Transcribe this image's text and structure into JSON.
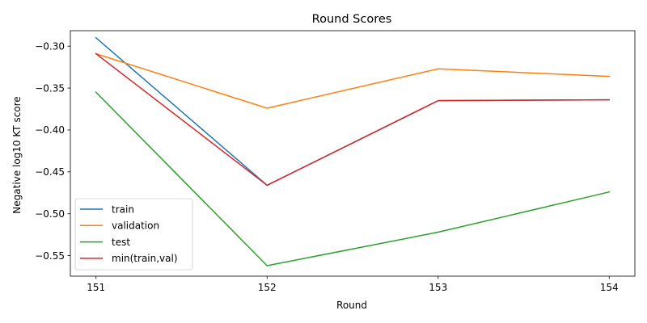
{
  "chart_data": {
    "type": "line",
    "title": "Round Scores",
    "xlabel": "Round",
    "ylabel": "Negative log10 KT score",
    "x": [
      151,
      152,
      153,
      154
    ],
    "xticks": [
      "151",
      "152",
      "153",
      "154"
    ],
    "yticks": [
      -0.3,
      -0.35,
      -0.4,
      -0.45,
      -0.5,
      -0.55
    ],
    "ytick_labels": [
      "−0.30",
      "−0.35",
      "−0.40",
      "−0.45",
      "−0.50",
      "−0.55"
    ],
    "xlim": [
      150.85,
      154.15
    ],
    "ylim": [
      -0.5745,
      -0.2815
    ],
    "grid": false,
    "legend_position": "lower-left",
    "series": [
      {
        "name": "train",
        "color": "#1f77b4",
        "values": [
          -0.29,
          -0.466,
          -0.365,
          -0.364
        ]
      },
      {
        "name": "validation",
        "color": "#ff7f0e",
        "values": [
          -0.309,
          -0.374,
          -0.327,
          -0.336
        ]
      },
      {
        "name": "test",
        "color": "#2ca02c",
        "values": [
          -0.355,
          -0.562,
          -0.522,
          -0.474
        ]
      },
      {
        "name": "min(train,val)",
        "color": "#d62728",
        "values": [
          -0.309,
          -0.466,
          -0.365,
          -0.364
        ]
      }
    ]
  }
}
